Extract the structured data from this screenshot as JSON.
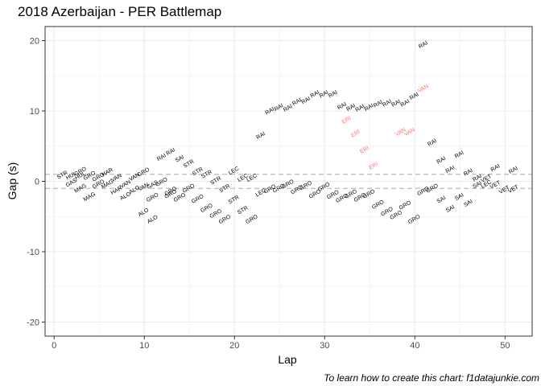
{
  "title": "2018 Azerbaijan - PER Battlemap",
  "caption": "To learn how to create this chart: f1datajunkie.com",
  "colors": {
    "default": "#000000",
    "highlight": "#f8766d",
    "refline": "#bdbdbd",
    "grid": "#ebebeb",
    "panel_border": "#333333"
  },
  "chart_data": {
    "type": "scatter",
    "title": "2018 Azerbaijan - PER Battlemap",
    "xlabel": "Lap",
    "ylabel": "Gap (s)",
    "xlim": [
      -1,
      53
    ],
    "ylim": [
      -22,
      22
    ],
    "x_ticks": [
      0,
      10,
      20,
      30,
      40,
      50
    ],
    "y_ticks": [
      -20,
      -10,
      0,
      10,
      20
    ],
    "grid": true,
    "reference_lines": [
      1,
      -1
    ],
    "points": [
      {
        "x": 1,
        "y": 0.7,
        "label": "STR"
      },
      {
        "x": 2,
        "y": 0.6,
        "label": "HUL"
      },
      {
        "x": 3,
        "y": 0.6,
        "label": "HUL"
      },
      {
        "x": 2,
        "y": -0.4,
        "label": "GAS"
      },
      {
        "x": 3,
        "y": 1.2,
        "label": "GRO"
      },
      {
        "x": 4,
        "y": 0.6,
        "label": "GRO"
      },
      {
        "x": 3,
        "y": -1.2,
        "label": "MAG"
      },
      {
        "x": 5,
        "y": 0.4,
        "label": "GRO"
      },
      {
        "x": 5,
        "y": -0.6,
        "label": "GRO"
      },
      {
        "x": 6,
        "y": 1.1,
        "label": "HAR"
      },
      {
        "x": 4,
        "y": -2.4,
        "label": "MAG"
      },
      {
        "x": 6,
        "y": -0.6,
        "label": "MAG"
      },
      {
        "x": 7,
        "y": 0.3,
        "label": "VAN"
      },
      {
        "x": 7,
        "y": -1.5,
        "label": "HAR"
      },
      {
        "x": 8,
        "y": -0.6,
        "label": "VAN"
      },
      {
        "x": 9,
        "y": 0.4,
        "label": "VAN"
      },
      {
        "x": 9,
        "y": -1.4,
        "label": "ALO"
      },
      {
        "x": 8,
        "y": -2.3,
        "label": "ALO"
      },
      {
        "x": 10,
        "y": -1.0,
        "label": "VAN"
      },
      {
        "x": 10,
        "y": 1.1,
        "label": "GRO"
      },
      {
        "x": 11,
        "y": -0.7,
        "label": "GAS"
      },
      {
        "x": 11,
        "y": -2.5,
        "label": "GRO"
      },
      {
        "x": 12,
        "y": -0.3,
        "label": "GRO"
      },
      {
        "x": 12,
        "y": 3.2,
        "label": "RAI"
      },
      {
        "x": 13,
        "y": -1.6,
        "label": "GRO"
      },
      {
        "x": 10,
        "y": -4.6,
        "label": "ALO"
      },
      {
        "x": 11,
        "y": -5.6,
        "label": "ALO"
      },
      {
        "x": 13,
        "y": 4.0,
        "label": "RAI"
      },
      {
        "x": 14,
        "y": 3.0,
        "label": "SAI"
      },
      {
        "x": 13,
        "y": -2.0,
        "label": "GRO"
      },
      {
        "x": 14,
        "y": -2.5,
        "label": "GRO"
      },
      {
        "x": 15,
        "y": 2.3,
        "label": "STR"
      },
      {
        "x": 15,
        "y": -1.2,
        "label": "GRO"
      },
      {
        "x": 16,
        "y": 1.2,
        "label": "STR"
      },
      {
        "x": 16,
        "y": -2.7,
        "label": "GRO"
      },
      {
        "x": 17,
        "y": 0.8,
        "label": "STR"
      },
      {
        "x": 17,
        "y": -4.0,
        "label": "GRO"
      },
      {
        "x": 18,
        "y": -0.1,
        "label": "STR"
      },
      {
        "x": 18,
        "y": -4.8,
        "label": "GRO"
      },
      {
        "x": 19,
        "y": -1.2,
        "label": "STR"
      },
      {
        "x": 19,
        "y": -5.6,
        "label": "GRO"
      },
      {
        "x": 20,
        "y": 1.3,
        "label": "LEC"
      },
      {
        "x": 20,
        "y": -2.8,
        "label": "STR"
      },
      {
        "x": 21,
        "y": -4.3,
        "label": "STR"
      },
      {
        "x": 21,
        "y": 0.3,
        "label": "LEC"
      },
      {
        "x": 22,
        "y": 0.3,
        "label": "LEC"
      },
      {
        "x": 22,
        "y": -5.6,
        "label": "GRO"
      },
      {
        "x": 23,
        "y": 6.3,
        "label": "RAI"
      },
      {
        "x": 23,
        "y": -1.8,
        "label": "LEC"
      },
      {
        "x": 24,
        "y": -1.3,
        "label": "GRO"
      },
      {
        "x": 24,
        "y": 9.8,
        "label": "RAI"
      },
      {
        "x": 25,
        "y": -1.2,
        "label": "GRO"
      },
      {
        "x": 25,
        "y": 10.3,
        "label": "RAI"
      },
      {
        "x": 26,
        "y": 10.2,
        "label": "RAI"
      },
      {
        "x": 26,
        "y": -0.6,
        "label": "GRO"
      },
      {
        "x": 27,
        "y": 11.1,
        "label": "RAI"
      },
      {
        "x": 27,
        "y": -1.4,
        "label": "GRO"
      },
      {
        "x": 28,
        "y": 11.3,
        "label": "RAI"
      },
      {
        "x": 28,
        "y": -0.8,
        "label": "GRO"
      },
      {
        "x": 29,
        "y": 12.2,
        "label": "RAI"
      },
      {
        "x": 29,
        "y": -2.0,
        "label": "GRO"
      },
      {
        "x": 30,
        "y": 12.2,
        "label": "RAI"
      },
      {
        "x": 30,
        "y": -1.0,
        "label": "GRO"
      },
      {
        "x": 31,
        "y": 12.2,
        "label": "RAI"
      },
      {
        "x": 31,
        "y": -2.1,
        "label": "GRO"
      },
      {
        "x": 32,
        "y": 10.5,
        "label": "RAI"
      },
      {
        "x": 32,
        "y": -2.6,
        "label": "GRO"
      },
      {
        "x": 33,
        "y": 10.3,
        "label": "RAI"
      },
      {
        "x": 32.5,
        "y": 8.5,
        "label": "ERI",
        "highlight": true
      },
      {
        "x": 33,
        "y": -2.0,
        "label": "GRO"
      },
      {
        "x": 34,
        "y": 10.2,
        "label": "RAI"
      },
      {
        "x": 33.5,
        "y": 6.6,
        "label": "ERI",
        "highlight": true
      },
      {
        "x": 34,
        "y": -2.5,
        "label": "GRO"
      },
      {
        "x": 35,
        "y": 10.3,
        "label": "RAI"
      },
      {
        "x": 34.5,
        "y": 4.3,
        "label": "ERI",
        "highlight": true
      },
      {
        "x": 35,
        "y": -2.0,
        "label": "GRO"
      },
      {
        "x": 35.5,
        "y": 2.0,
        "label": "ERI",
        "highlight": true
      },
      {
        "x": 36,
        "y": 10.8,
        "label": "RAI"
      },
      {
        "x": 36,
        "y": -3.5,
        "label": "GRO"
      },
      {
        "x": 37,
        "y": 10.9,
        "label": "RAI"
      },
      {
        "x": 37,
        "y": -4.5,
        "label": "GRO"
      },
      {
        "x": 38,
        "y": 10.9,
        "label": "RAI"
      },
      {
        "x": 38,
        "y": -5.0,
        "label": "GRO"
      },
      {
        "x": 38.5,
        "y": 6.8,
        "label": "VAN",
        "highlight": true
      },
      {
        "x": 39,
        "y": 10.9,
        "label": "RAI"
      },
      {
        "x": 39,
        "y": -3.6,
        "label": "GRO"
      },
      {
        "x": 39.5,
        "y": 6.8,
        "label": "VAN",
        "highlight": true
      },
      {
        "x": 40,
        "y": 11.9,
        "label": "RAI"
      },
      {
        "x": 40,
        "y": -5.6,
        "label": "GRO"
      },
      {
        "x": 41,
        "y": 13.0,
        "label": "VAN",
        "highlight": true
      },
      {
        "x": 41,
        "y": 19.2,
        "label": "RAI"
      },
      {
        "x": 41,
        "y": -1.6,
        "label": "GRO"
      },
      {
        "x": 42,
        "y": 5.3,
        "label": "RAI"
      },
      {
        "x": 42,
        "y": -1.2,
        "label": "GRO"
      },
      {
        "x": 43,
        "y": 2.8,
        "label": "RAI"
      },
      {
        "x": 43,
        "y": -2.8,
        "label": "SAI"
      },
      {
        "x": 44,
        "y": 1.5,
        "label": "RAI"
      },
      {
        "x": 44,
        "y": -4.1,
        "label": "SAI"
      },
      {
        "x": 45,
        "y": 3.6,
        "label": "RAI"
      },
      {
        "x": 45,
        "y": -2.4,
        "label": "SAI"
      },
      {
        "x": 46,
        "y": 1.1,
        "label": "RAI"
      },
      {
        "x": 46,
        "y": -3.3,
        "label": "SAI"
      },
      {
        "x": 47,
        "y": 0.3,
        "label": "RAI"
      },
      {
        "x": 47,
        "y": -0.7,
        "label": "SAI"
      },
      {
        "x": 48,
        "y": -0.6,
        "label": "LEC"
      },
      {
        "x": 48,
        "y": 0.2,
        "label": "VET"
      },
      {
        "x": 49,
        "y": -0.7,
        "label": "VET"
      },
      {
        "x": 49,
        "y": 1.7,
        "label": "RAI"
      },
      {
        "x": 50,
        "y": -1.4,
        "label": "VET"
      },
      {
        "x": 51,
        "y": 1.4,
        "label": "RAI"
      },
      {
        "x": 51,
        "y": -1.3,
        "label": "VET"
      }
    ]
  }
}
